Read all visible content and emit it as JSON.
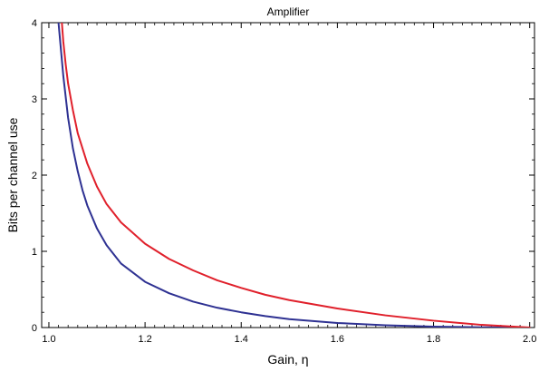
{
  "chart_data": {
    "type": "line",
    "title": "Amplifier",
    "xlabel": "Gain, η",
    "ylabel": "Bits per channel use",
    "xlim": [
      0.985,
      2.01
    ],
    "ylim": [
      0,
      4
    ],
    "xticks": [
      1.0,
      1.2,
      1.4,
      1.6,
      1.8,
      2.0
    ],
    "xtick_labels": [
      "1.0",
      "1.2",
      "1.4",
      "1.6",
      "1.8",
      "2.0"
    ],
    "yticks": [
      0,
      1,
      2,
      3,
      4
    ],
    "ytick_labels": [
      "0",
      "1",
      "2",
      "3",
      "4"
    ],
    "minor_xticks": true,
    "minor_yticks": true,
    "grid": false,
    "legend": "none",
    "series": [
      {
        "color": "#2e3192",
        "x": [
          1.02,
          1.025,
          1.03,
          1.04,
          1.05,
          1.06,
          1.07,
          1.08,
          1.1,
          1.12,
          1.15,
          1.2,
          1.25,
          1.3,
          1.35,
          1.4,
          1.45,
          1.5,
          1.6,
          1.7,
          1.8,
          1.9,
          2.0
        ],
        "y": [
          4.0,
          3.65,
          3.3,
          2.75,
          2.35,
          2.05,
          1.8,
          1.6,
          1.3,
          1.08,
          0.84,
          0.6,
          0.45,
          0.34,
          0.26,
          0.2,
          0.15,
          0.11,
          0.06,
          0.03,
          0.012,
          0.003,
          0.0
        ]
      },
      {
        "color": "#e0202b",
        "x": [
          1.027,
          1.03,
          1.035,
          1.04,
          1.05,
          1.06,
          1.08,
          1.1,
          1.12,
          1.15,
          1.2,
          1.25,
          1.3,
          1.35,
          1.4,
          1.45,
          1.5,
          1.6,
          1.7,
          1.8,
          1.9,
          2.0
        ],
        "y": [
          4.0,
          3.75,
          3.45,
          3.2,
          2.85,
          2.55,
          2.15,
          1.85,
          1.62,
          1.38,
          1.1,
          0.9,
          0.75,
          0.62,
          0.52,
          0.43,
          0.36,
          0.25,
          0.16,
          0.09,
          0.035,
          0.0
        ]
      }
    ]
  }
}
